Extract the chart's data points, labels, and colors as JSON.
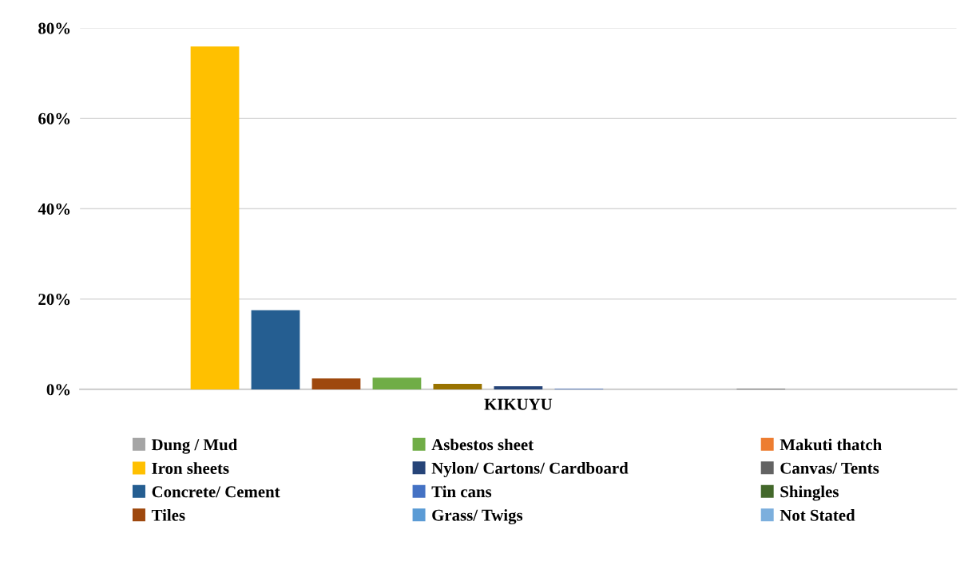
{
  "chart_data": {
    "type": "bar",
    "categories": [
      "KIKUYU"
    ],
    "series": [
      {
        "name": "Dung / Mud",
        "color": "#a5a5a5",
        "values": [
          0
        ]
      },
      {
        "name": "Iron sheets",
        "color": "#ffc000",
        "values": [
          75.9
        ]
      },
      {
        "name": "Concrete/ Cement",
        "color": "#255e91",
        "values": [
          17.5
        ]
      },
      {
        "name": "Tiles",
        "color": "#9e480e",
        "values": [
          2.4
        ]
      },
      {
        "name": "Asbestos sheet",
        "color": "#70ad47",
        "values": [
          2.6
        ]
      },
      {
        "color": "#997300",
        "values": [
          1.2
        ]
      },
      {
        "name": "Nylon/ Cartons/ Cardboard",
        "color": "#264478",
        "values": [
          0.7
        ]
      },
      {
        "name": "Tin cans",
        "color": "#4472c4",
        "values": [
          0.1
        ]
      },
      {
        "name": "Grass/ Twigs",
        "color": "#5b9bd5",
        "values": [
          0
        ]
      },
      {
        "name": "Makuti thatch",
        "color": "#ed7d31",
        "values": [
          0
        ]
      },
      {
        "name": "Canvas/ Tents",
        "color": "#636363",
        "values": [
          0.1
        ]
      },
      {
        "name": "Shingles",
        "color": "#43682b",
        "values": [
          0
        ]
      },
      {
        "name": "Not Stated",
        "color": "#7cafdd",
        "values": [
          0
        ]
      }
    ],
    "ylim": [
      0,
      80
    ],
    "yticks": [
      {
        "value": 0,
        "label": "0%"
      },
      {
        "value": 20,
        "label": "20%"
      },
      {
        "value": 40,
        "label": "40%"
      },
      {
        "value": 60,
        "label": "60%"
      },
      {
        "value": 80,
        "label": "80%"
      }
    ],
    "grid": "y",
    "legend": "bottom"
  }
}
